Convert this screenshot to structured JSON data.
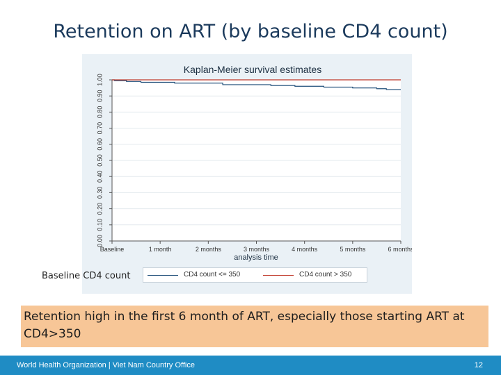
{
  "slide": {
    "title": "Retention on ART (by baseline CD4 count)"
  },
  "chart_data": {
    "type": "line",
    "title": "Kaplan-Meier survival estimates",
    "xlabel": "analysis time",
    "ylabel": "",
    "x_ticks": [
      "Baseline",
      "1 month",
      "2 months",
      "3 months",
      "4 months",
      "5 months",
      "6 months"
    ],
    "y_ticks": [
      "0.00",
      "0.10",
      "0.20",
      "0.30",
      "0.40",
      "0.50",
      "0.60",
      "0.70",
      "0.80",
      "0.90",
      "1.00"
    ],
    "xlim": [
      0,
      6
    ],
    "ylim": [
      0,
      1
    ],
    "grid": true,
    "series": [
      {
        "name": "CD4 count <= 350",
        "color": "#1f4e79",
        "step": true,
        "x": [
          0,
          0.05,
          0.3,
          0.6,
          1.3,
          2.3,
          3.3,
          3.8,
          4.4,
          5.0,
          5.5,
          5.7,
          6.0
        ],
        "y": [
          1.0,
          0.995,
          0.99,
          0.985,
          0.98,
          0.97,
          0.965,
          0.96,
          0.955,
          0.95,
          0.945,
          0.94,
          0.94
        ]
      },
      {
        "name": "CD4 count > 350",
        "color": "#c0392b",
        "step": true,
        "x": [
          0,
          6.0
        ],
        "y": [
          1.0,
          1.0
        ]
      }
    ]
  },
  "legend": {
    "label": "Baseline CD4 count",
    "items": [
      "CD4 count <= 350",
      "CD4 count > 350"
    ],
    "colors": [
      "#1f4e79",
      "#c0392b"
    ]
  },
  "callout": {
    "text": "Retention high in the first 6 month of ART, especially those starting ART at CD4>350"
  },
  "footer": {
    "org": "World Health Organization | Viet Nam Country Office",
    "page": "12"
  }
}
